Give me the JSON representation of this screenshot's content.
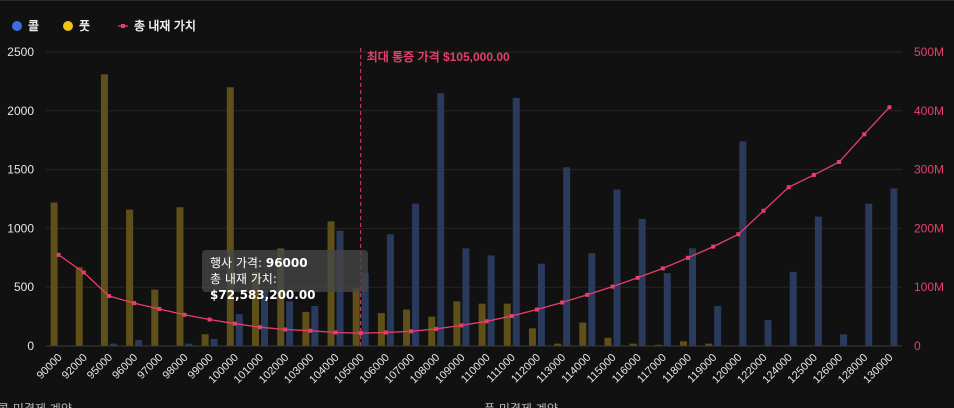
{
  "chart_data": {
    "type": "bar",
    "legend": {
      "placement": "top-left",
      "items": [
        {
          "key": "calls",
          "label": "콜",
          "color": "#3b6fe0",
          "marker": "circle"
        },
        {
          "key": "puts",
          "label": "풋",
          "color": "#f0c419",
          "marker": "circle"
        },
        {
          "key": "total",
          "label": "총 내재 가치",
          "color": "#e83e6c",
          "marker": "square-line"
        }
      ]
    },
    "categories": [
      "90000",
      "92000",
      "95000",
      "96000",
      "97000",
      "98000",
      "99000",
      "100000",
      "101000",
      "102000",
      "103000",
      "104000",
      "105000",
      "106000",
      "107000",
      "108000",
      "109000",
      "110000",
      "111000",
      "112000",
      "113000",
      "114000",
      "115000",
      "116000",
      "117000",
      "118000",
      "119000",
      "120000",
      "122000",
      "124000",
      "125000",
      "126000",
      "128000",
      "130000"
    ],
    "series": [
      {
        "name": "콜",
        "axis": "left",
        "color": "#2a3a5c",
        "values": [
          0,
          0,
          20,
          50,
          0,
          20,
          60,
          270,
          470,
          380,
          340,
          980,
          620,
          950,
          1210,
          2150,
          830,
          770,
          2110,
          700,
          1520,
          790,
          1330,
          1080,
          620,
          830,
          340,
          1740,
          220,
          630,
          1100,
          100,
          1210,
          1340
        ]
      },
      {
        "name": "풋",
        "axis": "left",
        "color": "#5e5018",
        "values": [
          1220,
          670,
          2310,
          1160,
          480,
          1180,
          100,
          2200,
          630,
          830,
          290,
          1060,
          490,
          280,
          310,
          250,
          380,
          360,
          360,
          150,
          20,
          200,
          70,
          20,
          10,
          40,
          20,
          0,
          0,
          0,
          0,
          0,
          0,
          0
        ]
      },
      {
        "name": "총 내재 가치",
        "axis": "right",
        "type": "line",
        "color": "#e83e6c",
        "values": [
          155,
          125,
          85,
          73,
          63,
          53,
          45,
          38,
          32,
          28,
          26,
          23,
          22,
          23,
          25,
          29,
          35,
          42,
          51,
          62,
          74,
          87,
          101,
          116,
          132,
          150,
          169,
          190,
          230,
          270,
          291,
          313,
          360,
          406
        ]
      }
    ],
    "y_left": {
      "min": 0,
      "max": 2500,
      "ticks": [
        "0",
        "500",
        "1000",
        "1500",
        "2000",
        "2500"
      ],
      "grid": true
    },
    "y_right": {
      "min": 0,
      "max": 500,
      "ticks": [
        "0",
        "100M",
        "200M",
        "300M",
        "400M",
        "500M"
      ]
    },
    "annotation": {
      "category": "105000",
      "label": "최대 통증 가격 $105,000.00",
      "color": "#e83e6c"
    },
    "tooltip": {
      "category": "96000",
      "line1_label": "행사 가격:",
      "line1_value": "96000",
      "line2_label": "총 내재 가치:",
      "line2_value": "$72,583,200.00"
    }
  },
  "bottom": {
    "left_label": "콜 미결제 계약",
    "right_label": "풋 미결제 계약"
  }
}
